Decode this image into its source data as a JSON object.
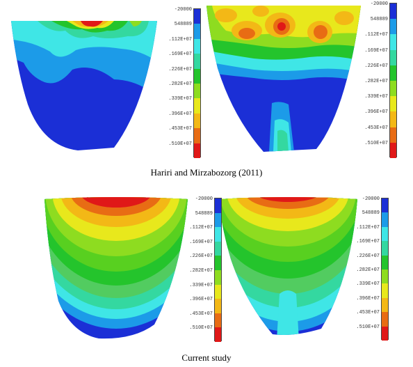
{
  "captions": {
    "top": "Hariri and Mirzabozorg (2011)",
    "bottom": "Current study"
  },
  "legend": {
    "labels": [
      "-20000",
      "548889",
      ".112E+07",
      ".169E+07",
      ".226E+07",
      ".282E+07",
      ".339E+07",
      ".396E+07",
      ".453E+07",
      ".510E+07"
    ],
    "colors": [
      "#1b2fd6",
      "#1c9be8",
      "#3fe6e6",
      "#34d8a0",
      "#24c42c",
      "#8edc20",
      "#e8e81c",
      "#f3b816",
      "#e86c14",
      "#e01818"
    ]
  }
}
